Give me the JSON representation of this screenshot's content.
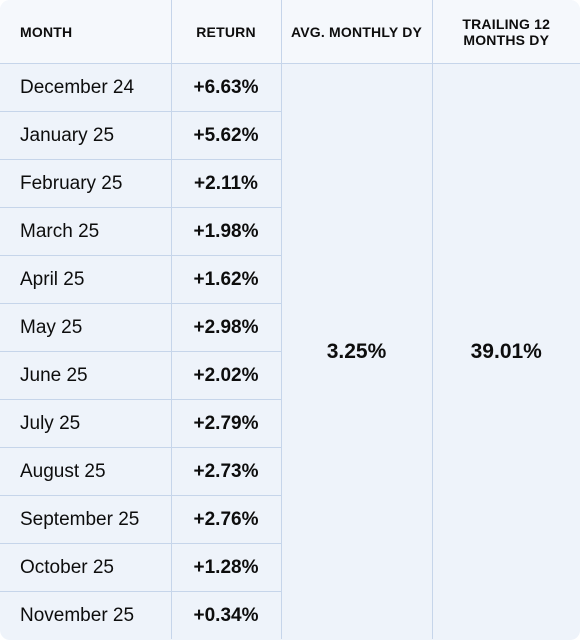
{
  "headers": {
    "month": "MONTH",
    "return": "RETURN",
    "avg_monthly_dy": "AVG. MONTHLY DY",
    "trailing_12_months_dy": "TRAILING 12 MONTHS DY"
  },
  "rows": [
    {
      "month": "December 24",
      "return": "+6.63%"
    },
    {
      "month": "January 25",
      "return": "+5.62%"
    },
    {
      "month": "February 25",
      "return": "+2.11%"
    },
    {
      "month": "March 25",
      "return": "+1.98%"
    },
    {
      "month": "April 25",
      "return": "+1.62%"
    },
    {
      "month": "May 25",
      "return": "+2.98%"
    },
    {
      "month": "June 25",
      "return": "+2.02%"
    },
    {
      "month": "July 25",
      "return": "+2.79%"
    },
    {
      "month": "August 25",
      "return": "+2.73%"
    },
    {
      "month": "September 25",
      "return": "+2.76%"
    },
    {
      "month": "October 25",
      "return": "+1.28%"
    },
    {
      "month": "November 25",
      "return": "+0.34%"
    }
  ],
  "summary": {
    "avg_monthly_dy": "3.25%",
    "trailing_12_months_dy": "39.01%"
  }
}
